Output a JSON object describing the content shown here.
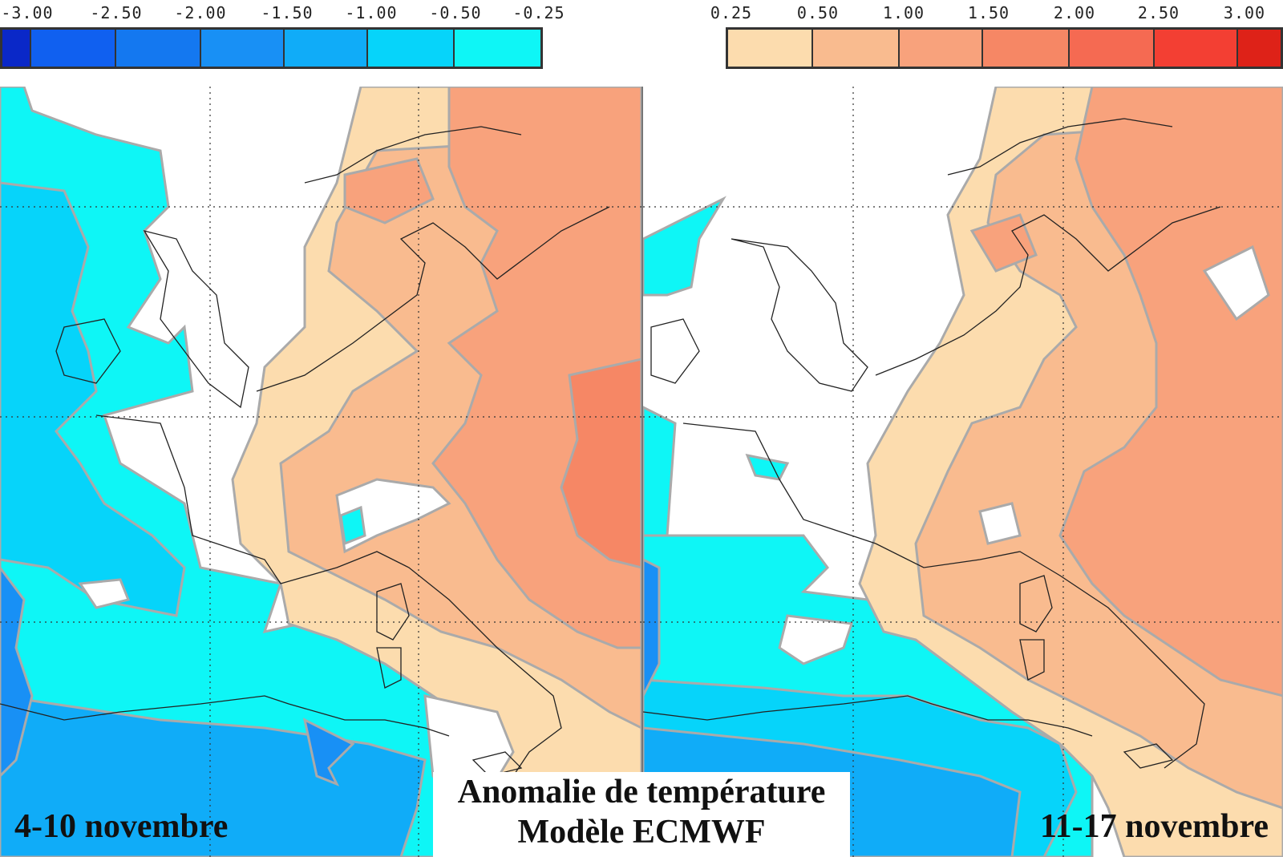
{
  "legend": {
    "negative": {
      "labels": [
        "-3.00",
        "-2.50",
        "-2.00",
        "-1.50",
        "-1.00",
        "-0.50",
        "-0.25"
      ],
      "colors": [
        "#0a28c8",
        "#1060f0",
        "#1478f0",
        "#1890f5",
        "#10acf8",
        "#06d4fa",
        "#0ef6f6"
      ]
    },
    "positive": {
      "labels": [
        "0.25",
        "0.50",
        "1.00",
        "1.50",
        "2.00",
        "2.50",
        "3.00"
      ],
      "colors": [
        "#fcdcae",
        "#f9bb8f",
        "#f8a27c",
        "#f68765",
        "#f56a52",
        "#f33f33",
        "#de2218"
      ]
    }
  },
  "title": {
    "line1": "Anomalie de température",
    "line2": "Modèle ECMWF"
  },
  "panels": [
    {
      "date_label": "4-10 novembre"
    },
    {
      "date_label": "11-17 novembre"
    }
  ],
  "colors": {
    "contour_line": "#aaaaaa",
    "coastline": "#222222",
    "gridline": "#222222"
  }
}
